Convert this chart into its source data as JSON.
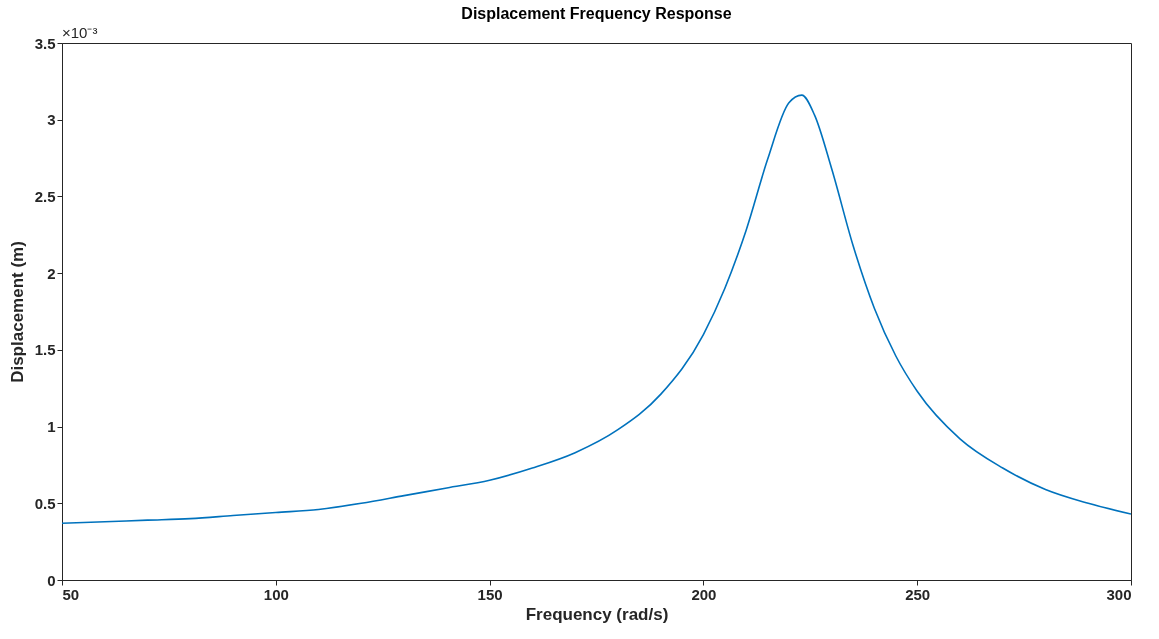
{
  "chart_data": {
    "type": "line",
    "title": "Displacement Frequency Response",
    "xlabel": "Frequency (rad/s)",
    "ylabel": "Displacement (m)",
    "annotations": [
      "×10⁻³"
    ],
    "x": [
      50,
      60,
      70,
      80,
      90,
      100,
      110,
      120,
      130,
      140,
      150,
      160,
      170,
      180,
      190,
      200,
      205,
      210,
      215,
      220,
      223,
      226,
      230,
      235,
      240,
      245,
      250,
      260,
      270,
      280,
      290,
      300
    ],
    "series": [
      {
        "color": "#0072bd",
        "values": [
          0.37,
          0.38,
          0.39,
          0.4,
          0.42,
          0.44,
          0.46,
          0.5,
          0.55,
          0.6,
          0.65,
          0.73,
          0.83,
          0.98,
          1.21,
          1.6,
          1.9,
          2.28,
          2.74,
          3.11,
          3.16,
          3.03,
          2.68,
          2.18,
          1.77,
          1.46,
          1.23,
          0.92,
          0.73,
          0.59,
          0.5,
          0.43
        ]
      }
    ],
    "xlim": [
      50,
      300
    ],
    "xticks": [
      50,
      100,
      150,
      200,
      250,
      300
    ],
    "ylim": [
      0,
      3.5
    ],
    "yticks": [
      0,
      0.5,
      1,
      1.5,
      2,
      2.5,
      3,
      3.5
    ],
    "grid": false,
    "marker": "none",
    "line_style": "solid"
  }
}
